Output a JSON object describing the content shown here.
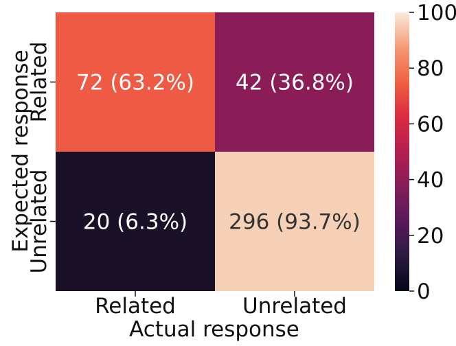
{
  "chart_data": {
    "type": "heatmap",
    "xlabel": "Actual response",
    "ylabel": "Expected response",
    "x_categories": [
      "Related",
      "Unrelated"
    ],
    "y_categories": [
      "Related",
      "Unrelated"
    ],
    "values": [
      [
        72,
        42
      ],
      [
        20,
        296
      ]
    ],
    "cell_labels": [
      [
        "72 (63.2%)",
        "42 (36.8%)"
      ],
      [
        "20 (6.3%)",
        "296 (93.7%)"
      ]
    ],
    "color_scale_percent": [
      [
        63.2,
        36.8
      ],
      [
        6.3,
        93.7
      ]
    ],
    "colorbar": {
      "min": 0,
      "max": 100,
      "ticks": [
        "0",
        "20",
        "40",
        "60",
        "80",
        "100"
      ]
    },
    "colormap": "rocket",
    "cell_colors": [
      [
        "#EE5A43",
        "#8A1D58"
      ],
      [
        "#1A1129",
        "#F7D1B7"
      ]
    ],
    "cell_text_colors": [
      [
        "#ffffff",
        "#ffffff"
      ],
      [
        "#ffffff",
        "#333333"
      ]
    ]
  }
}
